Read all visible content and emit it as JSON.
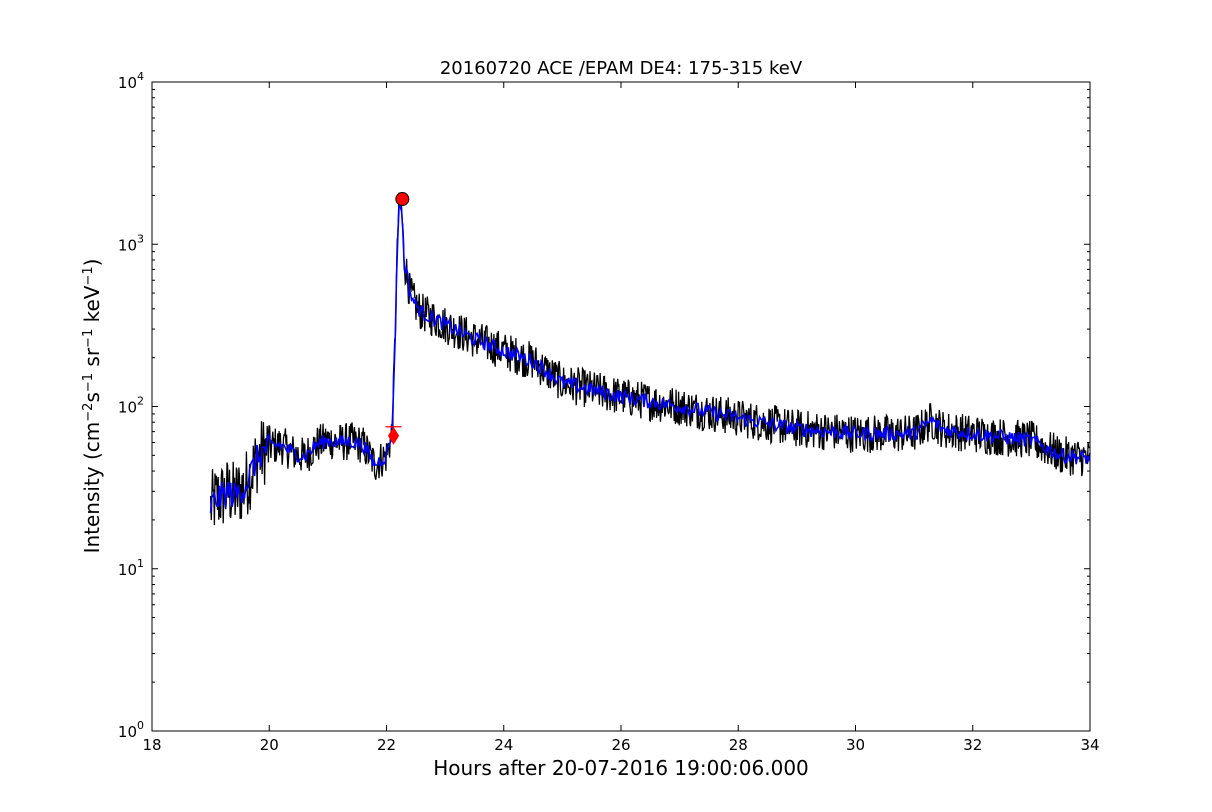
{
  "chart_data": {
    "type": "line",
    "title": "20160720 ACE /EPAM DE4: 175-315 keV",
    "xlabel": "Hours after 20-07-2016 19:00:06.000",
    "ylabel": {
      "prefix": "Intensity (cm",
      "exp1": "−2",
      "part2": "s",
      "exp2": "−1",
      "part3": " sr",
      "exp3": "−1",
      "part4": " keV",
      "exp4": "−1",
      "suffix": ")"
    },
    "xlim": [
      18,
      34
    ],
    "ylim": [
      1,
      10000
    ],
    "yscale": "log",
    "grid": false,
    "x_ticks": [
      "18",
      "20",
      "22",
      "24",
      "26",
      "28",
      "30",
      "32",
      "34"
    ],
    "y_ticks": [
      {
        "base": "10",
        "exp": "0"
      },
      {
        "base": "10",
        "exp": "1"
      },
      {
        "base": "10",
        "exp": "2"
      },
      {
        "base": "10",
        "exp": "3"
      },
      {
        "base": "10",
        "exp": "4"
      }
    ],
    "colors": {
      "raw": "#000000",
      "smoothed": "#0000ff",
      "marker": "#ff0000"
    },
    "series": [
      {
        "style": "raw",
        "x": [
          19.0,
          19.1,
          19.2,
          19.3,
          19.4,
          19.5,
          19.6,
          19.7,
          19.8,
          19.9,
          20.0,
          20.2,
          20.4,
          20.6,
          20.8,
          21.0,
          21.2,
          21.4,
          21.6,
          21.8,
          22.0,
          22.1,
          22.15,
          22.2,
          22.25,
          22.3,
          22.35,
          22.4,
          22.5,
          22.6,
          22.8,
          23.0,
          23.5,
          24.0,
          24.5,
          25.0,
          26.0,
          27.0,
          28.0,
          29.0,
          30.0,
          31.0,
          31.3,
          31.5,
          32.0,
          33.0,
          33.5,
          34.0
        ],
        "y": [
          24,
          27,
          28,
          30,
          28,
          30,
          33,
          40,
          48,
          53,
          57,
          58,
          52,
          49,
          58,
          62,
          60,
          61,
          58,
          44,
          50,
          70,
          300,
          1500,
          1900,
          800,
          650,
          500,
          420,
          380,
          350,
          320,
          260,
          220,
          190,
          140,
          115,
          100,
          85,
          73,
          68,
          68,
          82,
          72,
          68,
          62,
          50,
          48
        ]
      },
      {
        "style": "smoothed",
        "x": [
          19.0,
          19.1,
          19.2,
          19.3,
          19.4,
          19.5,
          19.6,
          19.7,
          19.8,
          19.9,
          20.0,
          20.2,
          20.4,
          20.6,
          20.8,
          21.0,
          21.2,
          21.4,
          21.6,
          21.8,
          22.0,
          22.1,
          22.15,
          22.2,
          22.25,
          22.3,
          22.35,
          22.4,
          22.5,
          22.6,
          22.8,
          23.0,
          23.5,
          24.0,
          24.5,
          25.0,
          26.0,
          27.0,
          28.0,
          29.0,
          30.0,
          31.0,
          31.3,
          31.5,
          32.0,
          33.0,
          33.5,
          34.0
        ],
        "y": [
          24,
          27,
          28,
          30,
          28,
          30,
          33,
          40,
          48,
          53,
          57,
          58,
          52,
          49,
          58,
          62,
          60,
          61,
          58,
          44,
          50,
          70,
          300,
          1500,
          1900,
          800,
          650,
          500,
          420,
          380,
          350,
          320,
          260,
          220,
          190,
          140,
          115,
          100,
          85,
          73,
          68,
          68,
          82,
          72,
          68,
          62,
          50,
          48
        ]
      }
    ],
    "markers": [
      {
        "shape": "circle",
        "x": 22.27,
        "y": 1900
      },
      {
        "shape": "diamond",
        "x": 22.12,
        "y": 66
      }
    ]
  }
}
